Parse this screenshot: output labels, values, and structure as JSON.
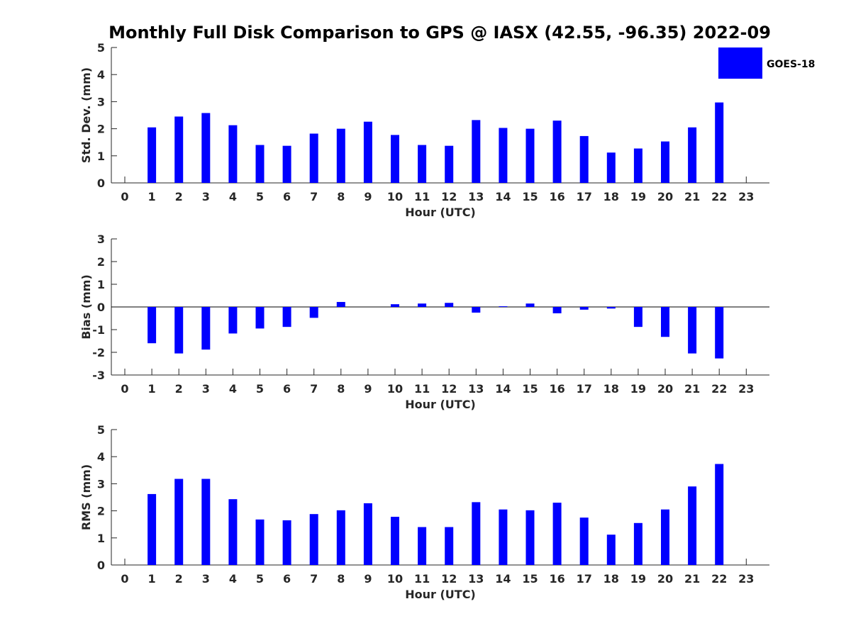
{
  "chart_data": {
    "title": "Monthly Full Disk Comparison to GPS @ IASX (42.55, -96.35) 2022-09",
    "type": "bar",
    "bar_color": "#0000ff",
    "legend": {
      "label": "GOES-18",
      "position": "top-right"
    },
    "x": [
      0,
      1,
      2,
      3,
      4,
      5,
      6,
      7,
      8,
      9,
      10,
      11,
      12,
      13,
      14,
      15,
      16,
      17,
      18,
      19,
      20,
      21,
      22,
      23
    ],
    "xlabel": "Hour (UTC)",
    "panels": [
      {
        "name": "std-dev",
        "ylabel": "Std. Dev. (mm)",
        "ylim": [
          0,
          5
        ],
        "yticks": [
          0,
          1,
          2,
          3,
          4,
          5
        ],
        "values": [
          null,
          2.05,
          2.45,
          2.58,
          2.13,
          1.4,
          1.37,
          1.82,
          2.0,
          2.26,
          1.77,
          1.4,
          1.37,
          2.32,
          2.03,
          2.0,
          2.3,
          1.73,
          1.12,
          1.27,
          1.53,
          2.05,
          2.97,
          null
        ]
      },
      {
        "name": "bias",
        "ylabel": "Bias (mm)",
        "ylim": [
          -3,
          3
        ],
        "yticks": [
          -3,
          -2,
          -1,
          0,
          1,
          2,
          3
        ],
        "zero_line": true,
        "values": [
          null,
          -1.6,
          -2.05,
          -1.88,
          -1.17,
          -0.95,
          -0.88,
          -0.48,
          0.22,
          0.0,
          0.12,
          0.15,
          0.18,
          -0.25,
          0.03,
          0.15,
          -0.28,
          -0.12,
          -0.07,
          -0.88,
          -1.32,
          -2.05,
          -2.27,
          null
        ]
      },
      {
        "name": "rms",
        "ylabel": "RMS (mm)",
        "ylim": [
          0,
          5
        ],
        "yticks": [
          0,
          1,
          2,
          3,
          4,
          5
        ],
        "values": [
          null,
          2.62,
          3.18,
          3.18,
          2.43,
          1.68,
          1.65,
          1.88,
          2.02,
          2.28,
          1.78,
          1.4,
          1.4,
          2.32,
          2.05,
          2.02,
          2.3,
          1.75,
          1.12,
          1.55,
          2.05,
          2.9,
          3.73,
          null
        ]
      }
    ]
  }
}
